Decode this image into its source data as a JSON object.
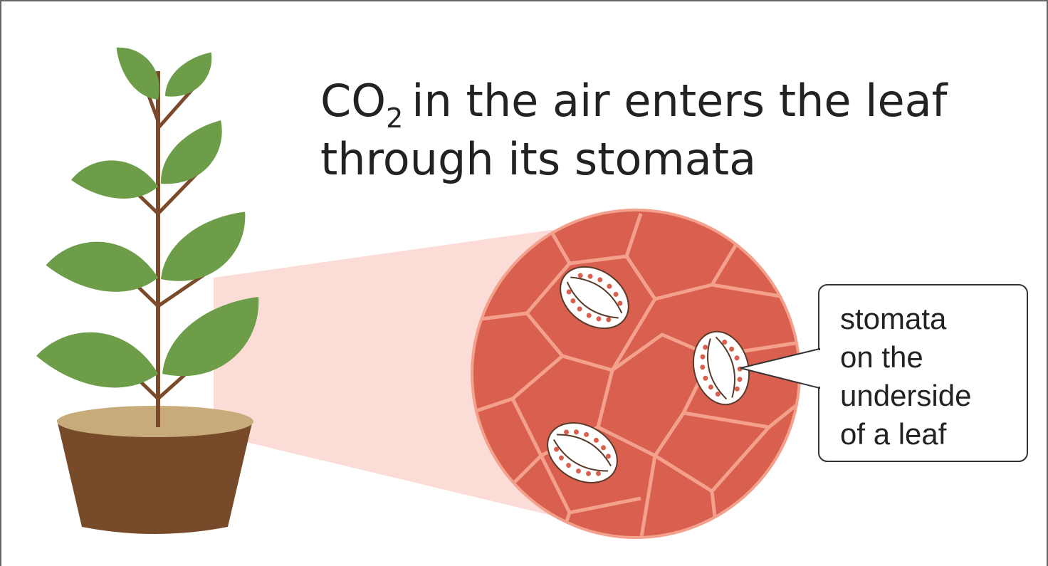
{
  "title": {
    "formula": "CO",
    "subscript": "2",
    "line1": "in the air enters the leaf",
    "line2": "through its stomata"
  },
  "callout": {
    "lines": [
      "stomata",
      "on the",
      "underside",
      "of a leaf"
    ]
  }
}
